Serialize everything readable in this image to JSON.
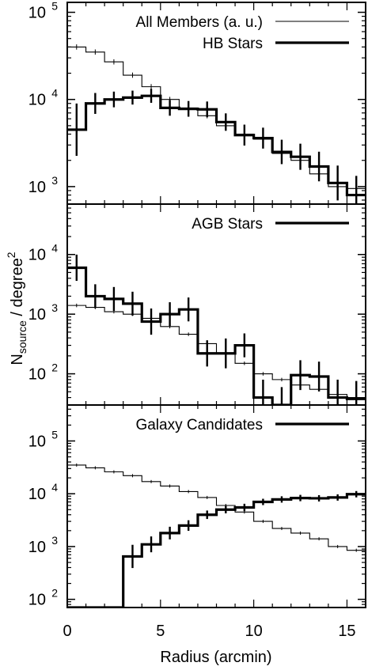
{
  "chart_data": {
    "type": "line",
    "drawstyle": "steps",
    "shared_xlabel": "Radius (arcmin)",
    "shared_ylabel": "N_source / degree^2",
    "ylabel_parts": {
      "main": "N",
      "sub": "source",
      "mid": " / degree",
      "sup": "2"
    },
    "xlim": [
      0,
      16
    ],
    "xticks": [
      "0",
      "5",
      "10",
      "15"
    ],
    "panels": [
      {
        "ylim": [
          630,
          130000
        ],
        "yscale": "log",
        "yticks": [
          {
            "value": 1000,
            "base": "10",
            "exp": "3"
          },
          {
            "value": 10000,
            "base": "10",
            "exp": "4"
          },
          {
            "value": 100000,
            "base": "10",
            "exp": "5"
          }
        ],
        "series": [
          {
            "name": "All Members (a. u.)",
            "style": "thin",
            "x": [
              0.5,
              1.5,
              2.5,
              3.5,
              4.5,
              5.5,
              6.5,
              7.5,
              8.5,
              9.5,
              10.5,
              11.5,
              12.5,
              13.5,
              14.5,
              15.5
            ],
            "y": [
              40000,
              35000,
              27000,
              19000,
              14000,
              10000,
              8000,
              6500,
              5000,
              4000,
              3500,
              2400,
              2000,
              1400,
              1000,
              950
            ],
            "err": [
              0.03,
              0.03,
              0.03,
              0.03,
              0.03,
              0.03,
              0.03,
              0.03,
              0.03,
              0.03,
              0.03,
              0.03,
              0.03,
              0.03,
              0.03,
              0.03
            ]
          },
          {
            "name": "HB Stars",
            "style": "thick",
            "x": [
              0.5,
              1.5,
              2.5,
              3.5,
              4.5,
              5.5,
              6.5,
              7.5,
              8.5,
              9.5,
              10.5,
              11.5,
              12.5,
              13.5,
              14.5,
              15.5
            ],
            "y": [
              4500,
              9000,
              10000,
              10500,
              11000,
              8000,
              7800,
              7700,
              5500,
              3900,
              3600,
              2500,
              2200,
              1700,
              1100,
              800
            ],
            "err": [
              0.3,
              0.12,
              0.09,
              0.08,
              0.08,
              0.09,
              0.09,
              0.09,
              0.1,
              0.12,
              0.12,
              0.14,
              0.15,
              0.17,
              0.2,
              0.22
            ]
          }
        ]
      },
      {
        "ylim": [
          30,
          70000
        ],
        "yscale": "log",
        "yticks": [
          {
            "value": 100,
            "base": "10",
            "exp": "2"
          },
          {
            "value": 1000,
            "base": "10",
            "exp": "3"
          },
          {
            "value": 10000,
            "base": "10",
            "exp": "4"
          }
        ],
        "series": [
          {
            "name": "",
            "style": "thin",
            "x": [
              0.5,
              1.5,
              2.5,
              3.5,
              4.5,
              5.5,
              6.5,
              7.5,
              8.5,
              9.5,
              10.5,
              11.5,
              12.5,
              13.5,
              14.5,
              15.5
            ],
            "y": [
              1400,
              1300,
              1100,
              1000,
              850,
              620,
              460,
              320,
              220,
              150,
              100,
              80,
              65,
              55,
              45,
              40
            ],
            "err": [
              0.03,
              0.03,
              0.03,
              0.03,
              0.03,
              0.03,
              0.03,
              0.03,
              0.03,
              0.03,
              0.03,
              0.03,
              0.03,
              0.03,
              0.03,
              0.03
            ]
          },
          {
            "name": "AGB Stars",
            "style": "thick",
            "x": [
              0.5,
              1.5,
              2.5,
              3.5,
              4.5,
              5.5,
              6.5,
              7.5,
              8.5,
              9.5,
              10.5,
              11.5,
              12.5,
              13.5,
              14.5,
              15.5
            ],
            "y": [
              6000,
              2000,
              1800,
              1500,
              750,
              1000,
              1200,
              220,
              220,
              300,
              40,
              30,
              95,
              90,
              40,
              38
            ],
            "err": [
              0.22,
              0.2,
              0.2,
              0.2,
              0.22,
              0.2,
              0.2,
              0.22,
              0.25,
              0.2,
              0.3,
              0.3,
              0.25,
              0.25,
              0.3,
              0.3
            ]
          }
        ]
      },
      {
        "ylim": [
          70,
          480000
        ],
        "yscale": "log",
        "yticks": [
          {
            "value": 100,
            "base": "10",
            "exp": "2"
          },
          {
            "value": 1000,
            "base": "10",
            "exp": "3"
          },
          {
            "value": 10000,
            "base": "10",
            "exp": "4"
          },
          {
            "value": 100000,
            "base": "10",
            "exp": "5"
          }
        ],
        "series": [
          {
            "name": "",
            "style": "thin",
            "x": [
              0.5,
              1.5,
              2.5,
              3.5,
              4.5,
              5.5,
              6.5,
              7.5,
              8.5,
              9.5,
              10.5,
              11.5,
              12.5,
              13.5,
              14.5,
              15.5
            ],
            "y": [
              35000,
              31000,
              26000,
              22000,
              17000,
              14000,
              11000,
              8500,
              6000,
              4500,
              3000,
              2200,
              1800,
              1400,
              1000,
              850
            ],
            "err": [
              0.03,
              0.03,
              0.03,
              0.03,
              0.03,
              0.03,
              0.03,
              0.03,
              0.03,
              0.03,
              0.03,
              0.03,
              0.03,
              0.03,
              0.03,
              0.03
            ]
          },
          {
            "name": "Galaxy Candidates",
            "style": "thick",
            "x": [
              0.5,
              1.5,
              2.5,
              3.5,
              4.5,
              5.5,
              6.5,
              7.5,
              8.5,
              9.5,
              10.5,
              11.5,
              12.5,
              13.5,
              14.5,
              15.5
            ],
            "y": [
              70,
              70,
              70,
              650,
              1100,
              1800,
              2500,
              4000,
              5000,
              5500,
              7000,
              7800,
              8300,
              8200,
              8500,
              9800
            ],
            "err": [
              0,
              0,
              0,
              0.22,
              0.15,
              0.12,
              0.1,
              0.08,
              0.07,
              0.07,
              0.06,
              0.06,
              0.06,
              0.06,
              0.06,
              0.06
            ]
          }
        ]
      }
    ]
  }
}
